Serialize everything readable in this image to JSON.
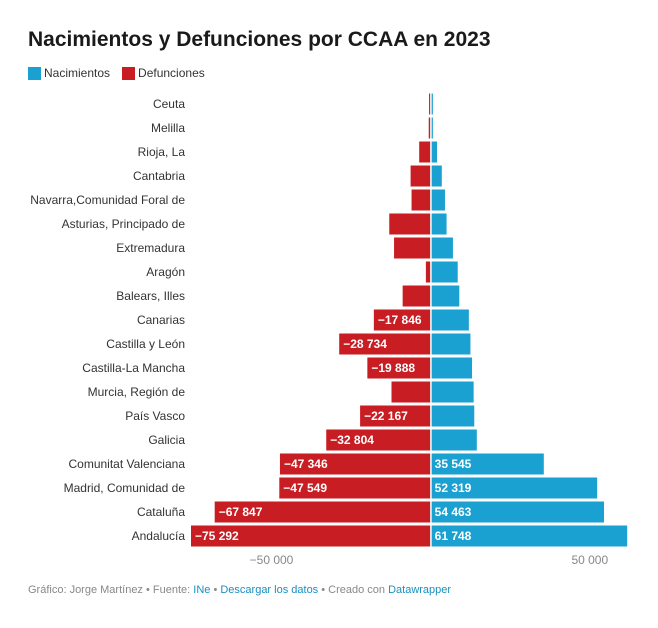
{
  "title": "Nacimientos y Defunciones por CCAA en 2023",
  "colors": {
    "nacimientos": "#1aa1d2",
    "defunciones": "#c91d24"
  },
  "footer": {
    "prefix": "Gráfico: Jorge Martínez • Fuente: ",
    "source": "INe",
    "sep1": " • ",
    "download": "Descargar los datos",
    "sep2": " • Creado con ",
    "tool": "Datawrapper"
  },
  "chart_data": {
    "type": "bar",
    "orientation": "horizontal-diverging",
    "categories": [
      "Ceuta",
      "Melilla",
      "Rioja, La",
      "Cantabria",
      "Navarra,Comunidad Foral de",
      "Asturias, Principado de",
      "Extremadura",
      "Aragón",
      "Balears, Illes",
      "Canarias",
      "Castilla y León",
      "Castilla-La Mancha",
      "Murcia, Región de",
      "País Vasco",
      "Galicia",
      "Comunitat Valenciana",
      "Madrid, Comunidad de",
      "Cataluña",
      "Andalucía"
    ],
    "series": [
      {
        "name": "Nacimientos",
        "values": [
          700,
          700,
          2000,
          3500,
          4500,
          5000,
          7000,
          8500,
          9000,
          12000,
          12500,
          13000,
          13500,
          13700,
          14500,
          35545,
          52319,
          54463,
          61748
        ],
        "labels": [
          "",
          "",
          "",
          "",
          "",
          "",
          "",
          "",
          "",
          "",
          "",
          "",
          "",
          "",
          "",
          "35 545",
          "52 319",
          "54 463",
          "61 748"
        ]
      },
      {
        "name": "Defunciones",
        "values": [
          -500,
          -600,
          -3600,
          -6300,
          -6000,
          -13000,
          -11500,
          -1500,
          -8800,
          -17846,
          -28734,
          -19888,
          -12300,
          -22167,
          -32804,
          -47346,
          -47549,
          -67847,
          -75292
        ],
        "labels": [
          "",
          "",
          "",
          "",
          "",
          "",
          "",
          "",
          "",
          "−17 846",
          "−28 734",
          "−19 888",
          "",
          "−22 167",
          "−32 804",
          "−47 346",
          "−47 549",
          "−67 847",
          "−75 292"
        ]
      }
    ],
    "xlim": [
      -75292,
      62000
    ],
    "xticks": [
      -50000,
      0,
      50000
    ],
    "xtick_labels": [
      "−50 000",
      "",
      "50 000"
    ],
    "legend": "top-left"
  }
}
